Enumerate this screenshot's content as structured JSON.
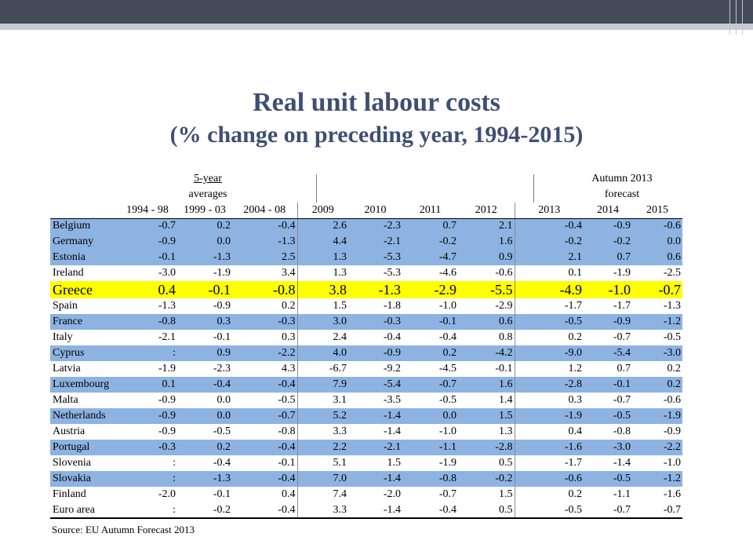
{
  "title": "Real unit labour costs",
  "subtitle": "(% change on preceding year, 1994-2015)",
  "averages_header": {
    "line1": "5-year",
    "line2": "averages"
  },
  "forecast_header": {
    "line1": "Autumn 2013",
    "line2": "forecast"
  },
  "columns": [
    "1994 - 98",
    "1999 - 03",
    "2004 - 08",
    "2009",
    "2010",
    "2011",
    "2012",
    "2013",
    "2014",
    "2015"
  ],
  "rows": [
    {
      "country": "Belgium",
      "style": "blue",
      "values": [
        "-0.7",
        "0.2",
        "-0.4",
        "2.6",
        "-2.3",
        "0.7",
        "2.1",
        "-0.4",
        "-0.9",
        "-0.6"
      ]
    },
    {
      "country": "Germany",
      "style": "blue",
      "values": [
        "-0.9",
        "0.0",
        "-1.3",
        "4.4",
        "-2.1",
        "-0.2",
        "1.6",
        "-0.2",
        "-0.2",
        "0.0"
      ]
    },
    {
      "country": "Estonia",
      "style": "blue",
      "values": [
        "-0.1",
        "-1.3",
        "2.5",
        "1.3",
        "-5.3",
        "-4.7",
        "0.9",
        "2.1",
        "0.7",
        "0.6"
      ]
    },
    {
      "country": "Ireland",
      "style": "white",
      "values": [
        "-3.0",
        "-1.9",
        "3.4",
        "1.3",
        "-5.3",
        "-4.6",
        "-0.6",
        "0.1",
        "-1.9",
        "-2.5"
      ]
    },
    {
      "country": "Greece",
      "style": "highlight",
      "values": [
        "0.4",
        "-0.1",
        "-0.8",
        "3.8",
        "-1.3",
        "-2.9",
        "-5.5",
        "-4.9",
        "-1.0",
        "-0.7"
      ]
    },
    {
      "country": "Spain",
      "style": "white",
      "values": [
        "-1.3",
        "-0.9",
        "0.2",
        "1.5",
        "-1.8",
        "-1.0",
        "-2.9",
        "-1.7",
        "-1.7",
        "-1.3"
      ]
    },
    {
      "country": "France",
      "style": "blue",
      "values": [
        "-0.8",
        "0.3",
        "-0.3",
        "3.0",
        "-0.3",
        "-0.1",
        "0.6",
        "-0.5",
        "-0.9",
        "-1.2"
      ]
    },
    {
      "country": "Italy",
      "style": "white",
      "values": [
        "-2.1",
        "-0.1",
        "0.3",
        "2.4",
        "-0.4",
        "-0.4",
        "0.8",
        "0.2",
        "-0.7",
        "-0.5"
      ]
    },
    {
      "country": "Cyprus",
      "style": "blue",
      "values": [
        ":",
        "0.9",
        "-2.2",
        "4.0",
        "-0.9",
        "0.2",
        "-4.2",
        "-9.0",
        "-5.4",
        "-3.0"
      ]
    },
    {
      "country": "Latvia",
      "style": "white",
      "values": [
        "-1.9",
        "-2.3",
        "4.3",
        "-6.7",
        "-9.2",
        "-4.5",
        "-0.1",
        "1.2",
        "0.7",
        "0.2"
      ]
    },
    {
      "country": "Luxembourg",
      "style": "blue",
      "values": [
        "0.1",
        "-0.4",
        "-0.4",
        "7.9",
        "-5.4",
        "-0.7",
        "1.6",
        "-2.8",
        "-0.1",
        "0.2"
      ]
    },
    {
      "country": "Malta",
      "style": "white",
      "values": [
        "-0.9",
        "0.0",
        "-0.5",
        "3.1",
        "-3.5",
        "-0.5",
        "1.4",
        "0.3",
        "-0.7",
        "-0.6"
      ]
    },
    {
      "country": "Netherlands",
      "style": "blue",
      "values": [
        "-0.9",
        "0.0",
        "-0.7",
        "5.2",
        "-1.4",
        "0.0",
        "1.5",
        "-1.9",
        "-0.5",
        "-1.9"
      ]
    },
    {
      "country": "Austria",
      "style": "white",
      "values": [
        "-0.9",
        "-0.5",
        "-0.8",
        "3.3",
        "-1.4",
        "-1.0",
        "1.3",
        "0.4",
        "-0.8",
        "-0.9"
      ]
    },
    {
      "country": "Portugal",
      "style": "blue",
      "values": [
        "-0.3",
        "0.2",
        "-0.4",
        "2.2",
        "-2.1",
        "-1.1",
        "-2.8",
        "-1.6",
        "-3.0",
        "-2.2"
      ]
    },
    {
      "country": "Slovenia",
      "style": "white",
      "values": [
        ":",
        "-0.4",
        "-0.1",
        "5.1",
        "1.5",
        "-1.9",
        "0.5",
        "-1.7",
        "-1.4",
        "-1.0"
      ]
    },
    {
      "country": "Slovakia",
      "style": "blue",
      "values": [
        ":",
        "-1.3",
        "-0.4",
        "7.0",
        "-1.4",
        "-0.8",
        "-0.2",
        "-0.6",
        "-0.5",
        "-1.2"
      ]
    },
    {
      "country": "Finland",
      "style": "white",
      "values": [
        "-2.0",
        "-0.1",
        "0.4",
        "7.4",
        "-2.0",
        "-0.7",
        "1.5",
        "0.2",
        "-1.1",
        "-1.6"
      ]
    },
    {
      "country": "Euro area",
      "style": "white",
      "values": [
        ":",
        "-0.2",
        "-0.4",
        "3.3",
        "-1.4",
        "-0.4",
        "0.5",
        "-0.5",
        "-0.7",
        "-0.7"
      ]
    }
  ],
  "source": "Source: EU Autumn Forecast 2013",
  "colors": {
    "title": "#3f4f73",
    "row_blue": "#8db3e2",
    "highlight": "#ffff00",
    "header_band": "#454a59"
  }
}
